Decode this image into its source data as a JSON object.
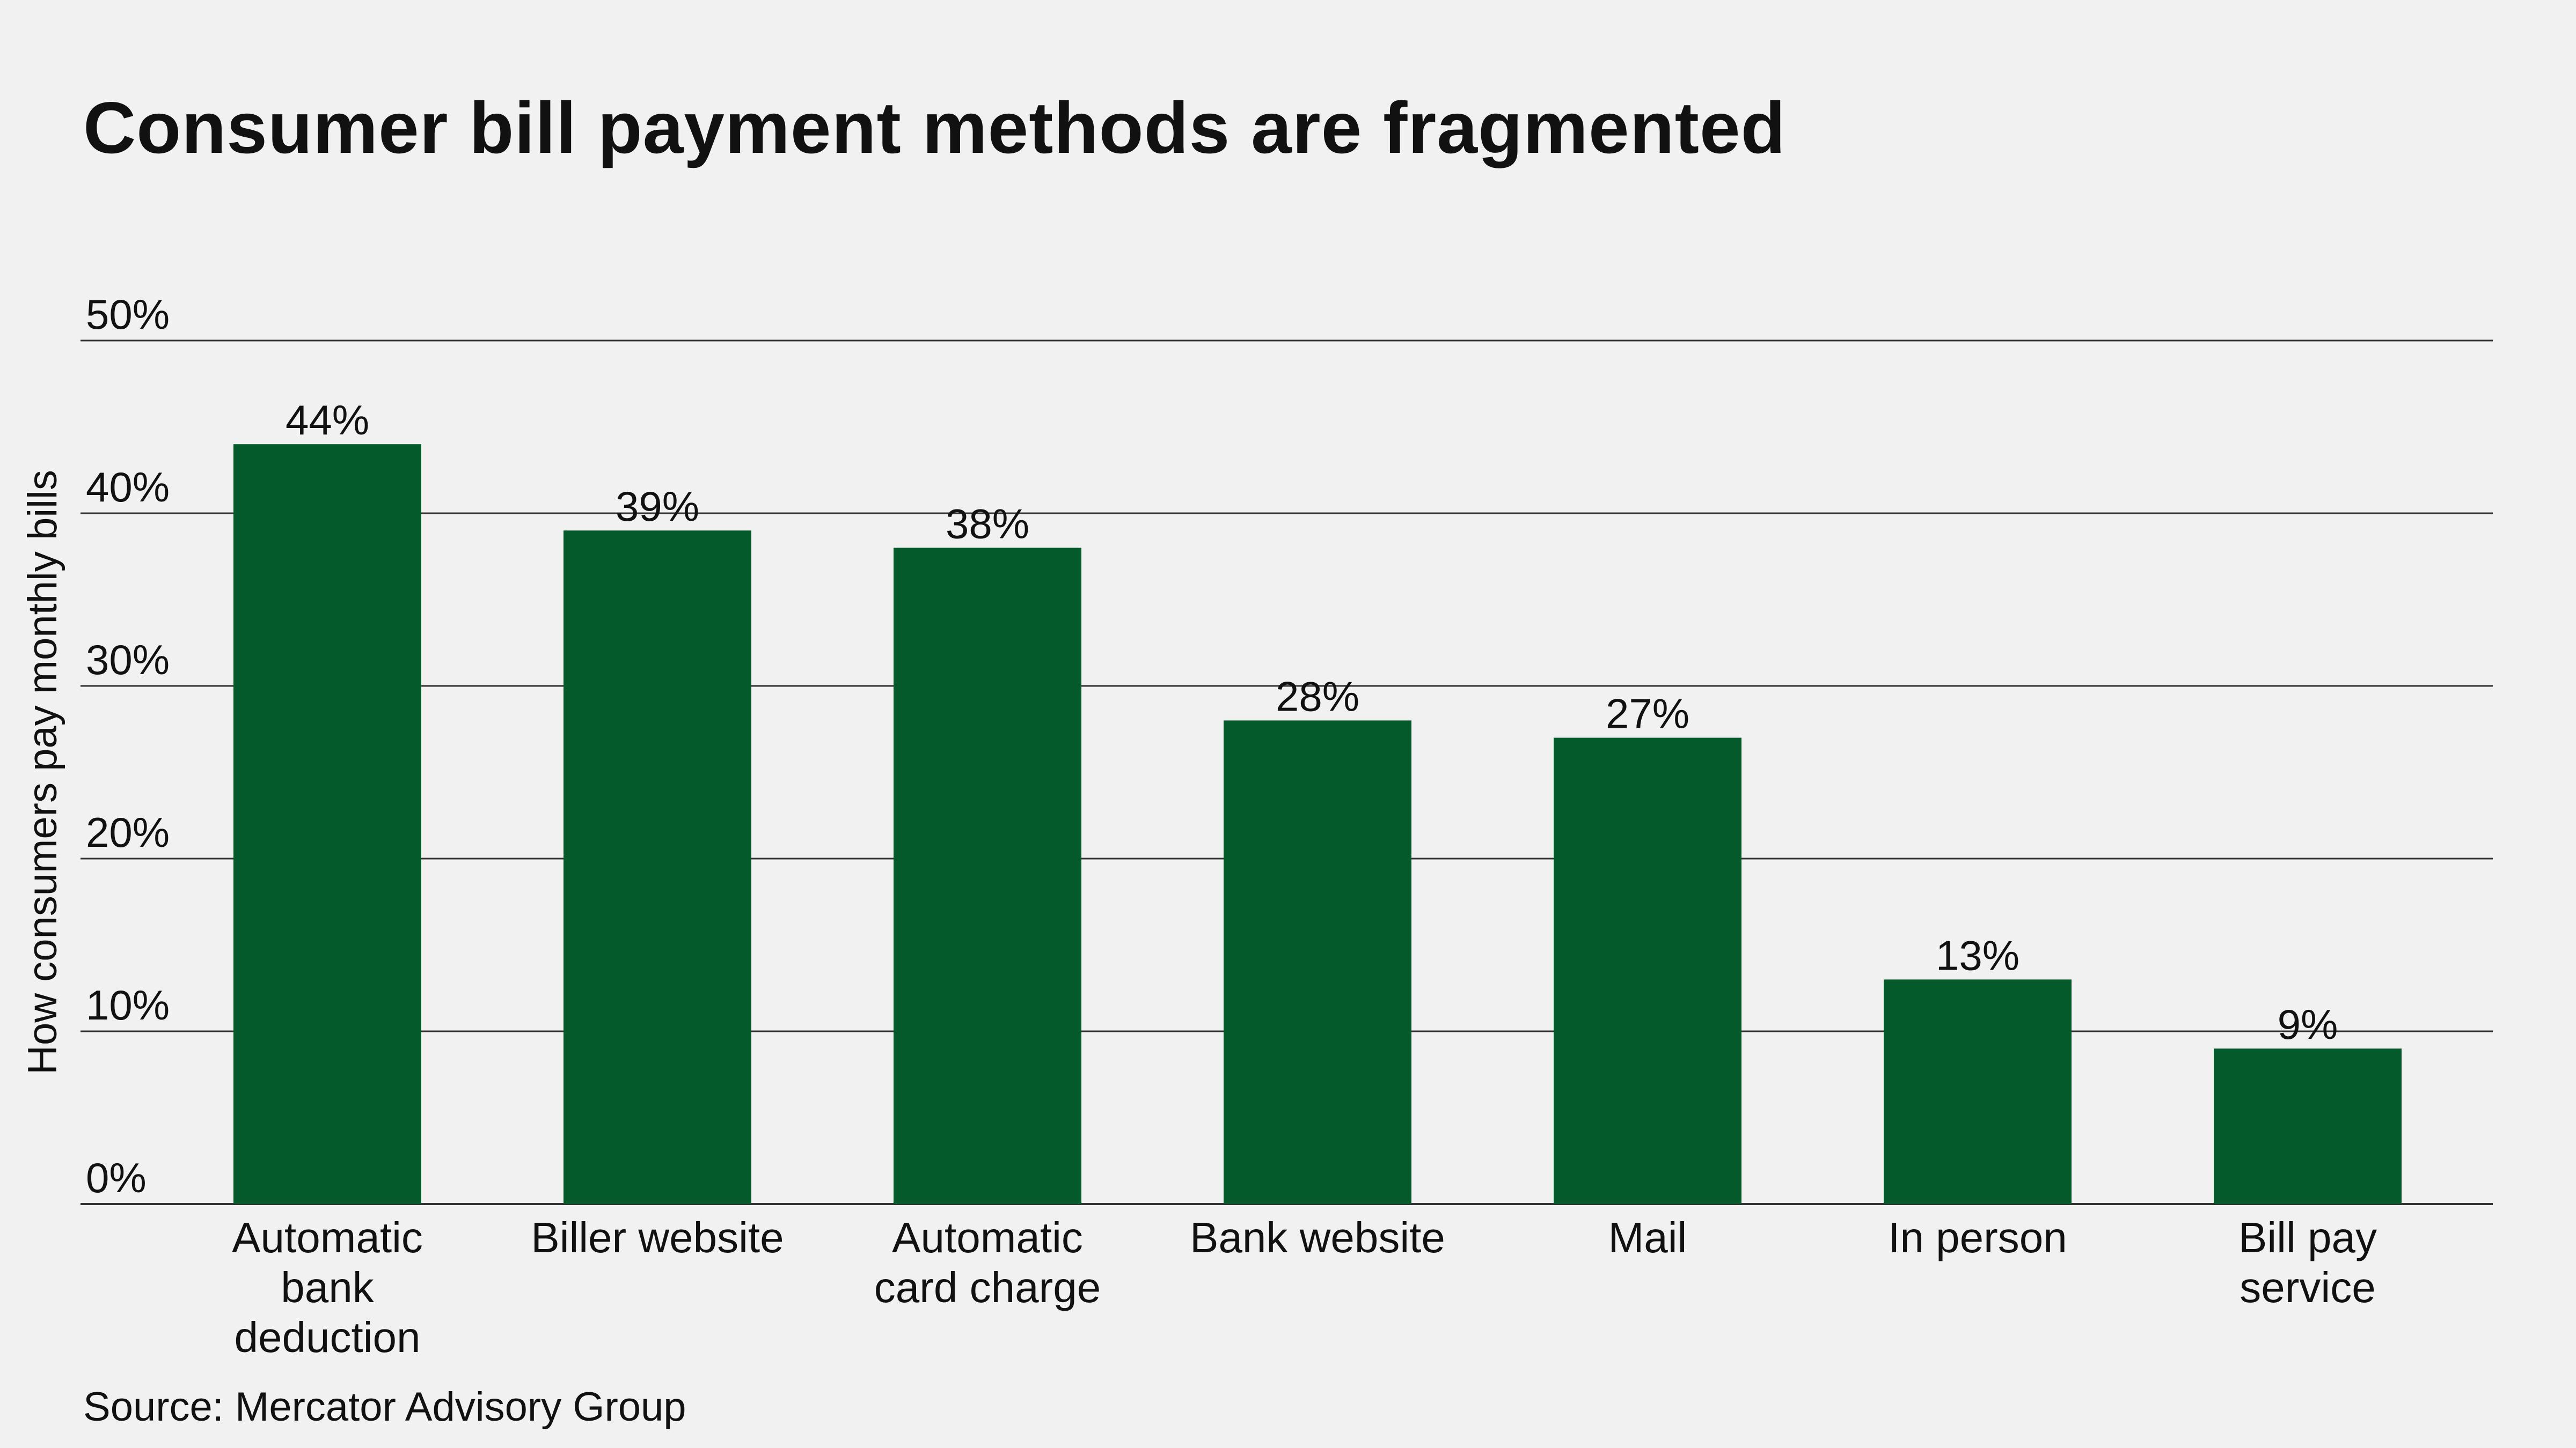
{
  "title": "Consumer bill payment methods are fragmented",
  "source": "Source: Mercator Advisory Group",
  "colors": {
    "background": "#f0f1f0",
    "bar": "#045a2a",
    "gridline": "#333333",
    "text": "#111111"
  },
  "chart_data": {
    "type": "bar",
    "title": "Consumer bill payment methods are fragmented",
    "xlabel": "",
    "ylabel": "How consumers pay monthly bills",
    "ylim": [
      0,
      50
    ],
    "yticks": [
      0,
      10,
      20,
      30,
      40,
      50
    ],
    "ytick_labels": [
      "0%",
      "10%",
      "20%",
      "30%",
      "40%",
      "50%"
    ],
    "grid": true,
    "legend": "none",
    "categories": [
      "Automatic bank deduction",
      "Biller website",
      "Automatic card charge",
      "Bank website",
      "Mail",
      "In person",
      "Bill pay service"
    ],
    "category_lines": [
      [
        "Automatic",
        "bank",
        "deduction"
      ],
      [
        "Biller website"
      ],
      [
        "Automatic",
        "card charge"
      ],
      [
        "Bank website"
      ],
      [
        "Mail"
      ],
      [
        "In person"
      ],
      [
        "Bill pay",
        "service"
      ]
    ],
    "values": [
      44,
      39,
      38,
      28,
      27,
      13,
      9
    ],
    "data_labels": [
      "44%",
      "39%",
      "38%",
      "28%",
      "27%",
      "13%",
      "9%"
    ]
  }
}
